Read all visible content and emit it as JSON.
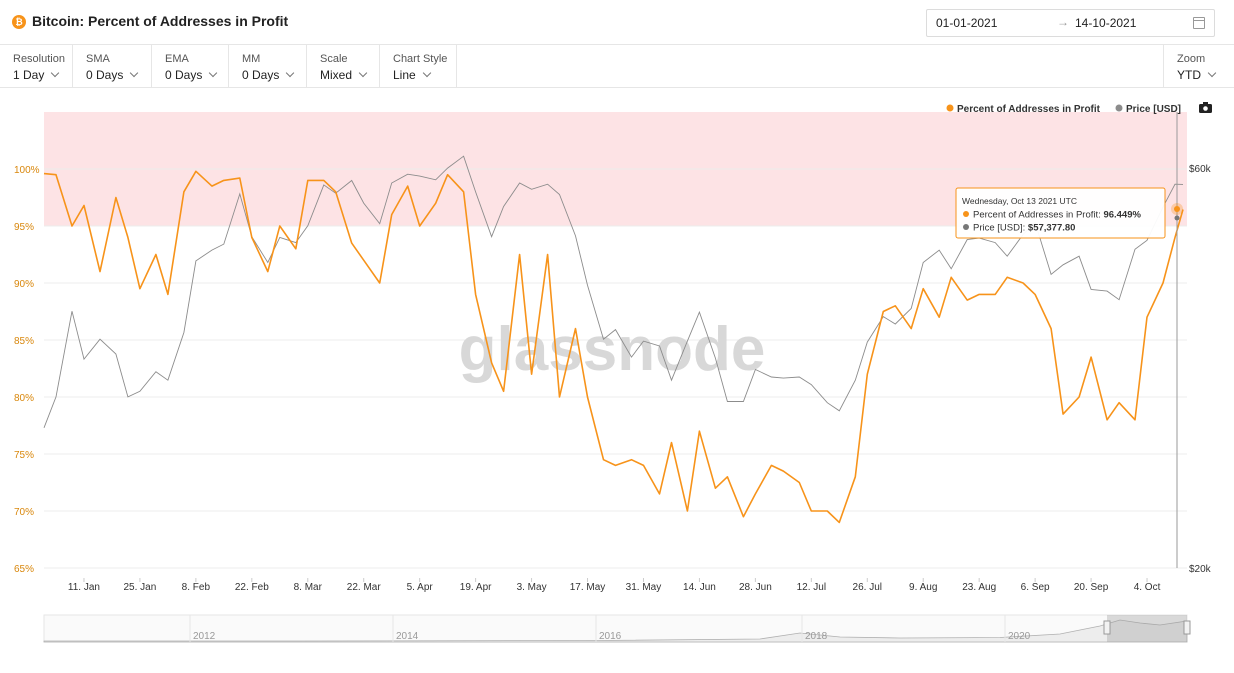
{
  "header": {
    "title": "Bitcoin: Percent of Addresses in Profit",
    "coin_icon_symbol": "₿",
    "coin_icon": "bitcoin-icon",
    "date_from": "01-01-2021",
    "date_to": "14-10-2021",
    "date_separator": "→",
    "calendar_icon": "calendar-icon"
  },
  "controls": [
    {
      "label": "Resolution",
      "value": "1 Day"
    },
    {
      "label": "SMA",
      "value": "0 Days"
    },
    {
      "label": "EMA",
      "value": "0 Days"
    },
    {
      "label": "MM",
      "value": "0 Days"
    },
    {
      "label": "Scale",
      "value": "Mixed"
    },
    {
      "label": "Chart Style",
      "value": "Line"
    }
  ],
  "zoom": {
    "label": "Zoom",
    "value": "YTD"
  },
  "colors": {
    "profit": "#f7931a",
    "price": "#8c8c8c",
    "band": "#fde3e5",
    "band_line": "#f09ca3",
    "left_axis": "#d9870c"
  },
  "watermark": "glassnode",
  "tooltip": {
    "date": "Wednesday, Oct 13 2021 UTC",
    "profit_label": "Percent of Addresses in Profit:",
    "profit_value": "96.449%",
    "price_label": "Price [USD]:",
    "price_value": "$57,377.80"
  },
  "navigator": {
    "years": [
      "2012",
      "2014",
      "2016",
      "2018",
      "2020"
    ]
  },
  "chart_data": {
    "type": "line",
    "legend": [
      "Percent of Addresses in Profit",
      "Price [USD]"
    ],
    "legend_position": "top-right",
    "y_left": {
      "ticks": [
        "100%",
        "95%",
        "90%",
        "85%",
        "80%",
        "75%",
        "70%",
        "65%"
      ],
      "range": [
        65,
        105
      ]
    },
    "y_right": {
      "ticks": [
        "$60k",
        "$20k"
      ],
      "scale": "log",
      "range": [
        20000,
        70000
      ]
    },
    "x_ticks": [
      "11. Jan",
      "25. Jan",
      "8. Feb",
      "22. Feb",
      "8. Mar",
      "22. Mar",
      "5. Apr",
      "19. Apr",
      "3. May",
      "17. May",
      "31. May",
      "14. Jun",
      "28. Jun",
      "12. Jul",
      "26. Jul",
      "9. Aug",
      "23. Aug",
      "6. Sep",
      "20. Sep",
      "4. Oct"
    ],
    "highlight_band": [
      95,
      105
    ],
    "series": [
      {
        "name": "Percent of Addresses in Profit",
        "x": [
          "2021-01-01",
          "2021-01-04",
          "2021-01-08",
          "2021-01-11",
          "2021-01-15",
          "2021-01-19",
          "2021-01-22",
          "2021-01-25",
          "2021-01-29",
          "2021-02-01",
          "2021-02-05",
          "2021-02-08",
          "2021-02-12",
          "2021-02-15",
          "2021-02-19",
          "2021-02-22",
          "2021-02-26",
          "2021-03-01",
          "2021-03-05",
          "2021-03-08",
          "2021-03-12",
          "2021-03-15",
          "2021-03-19",
          "2021-03-22",
          "2021-03-26",
          "2021-03-29",
          "2021-04-02",
          "2021-04-05",
          "2021-04-09",
          "2021-04-12",
          "2021-04-16",
          "2021-04-19",
          "2021-04-23",
          "2021-04-26",
          "2021-04-30",
          "2021-05-03",
          "2021-05-07",
          "2021-05-10",
          "2021-05-14",
          "2021-05-17",
          "2021-05-21",
          "2021-05-24",
          "2021-05-28",
          "2021-05-31",
          "2021-06-04",
          "2021-06-07",
          "2021-06-11",
          "2021-06-14",
          "2021-06-18",
          "2021-06-21",
          "2021-06-25",
          "2021-06-28",
          "2021-07-02",
          "2021-07-05",
          "2021-07-09",
          "2021-07-12",
          "2021-07-16",
          "2021-07-19",
          "2021-07-23",
          "2021-07-26",
          "2021-07-30",
          "2021-08-02",
          "2021-08-06",
          "2021-08-09",
          "2021-08-13",
          "2021-08-16",
          "2021-08-20",
          "2021-08-23",
          "2021-08-27",
          "2021-08-30",
          "2021-09-03",
          "2021-09-06",
          "2021-09-10",
          "2021-09-13",
          "2021-09-17",
          "2021-09-20",
          "2021-09-24",
          "2021-09-27",
          "2021-10-01",
          "2021-10-04",
          "2021-10-08",
          "2021-10-11",
          "2021-10-13"
        ],
        "y": [
          99.6,
          99.5,
          95.0,
          96.8,
          91.0,
          97.5,
          94.0,
          89.5,
          92.5,
          89.0,
          98.0,
          99.8,
          98.5,
          99.0,
          99.2,
          94.0,
          91.0,
          95.0,
          93.0,
          99.0,
          99.0,
          98.0,
          93.5,
          92.0,
          90.0,
          96.0,
          98.5,
          95.0,
          97.0,
          99.5,
          98.0,
          89.0,
          83.0,
          80.5,
          92.5,
          82.0,
          92.5,
          80.0,
          86.0,
          80.0,
          74.5,
          74.0,
          74.5,
          74.0,
          71.5,
          76.0,
          70.0,
          77.0,
          72.0,
          73.0,
          69.5,
          71.5,
          74.0,
          73.5,
          72.5,
          70.0,
          70.0,
          69.0,
          73.0,
          82.0,
          87.5,
          88.0,
          86.0,
          89.5,
          87.0,
          90.5,
          88.5,
          89.0,
          89.0,
          90.5,
          90.0,
          89.0,
          86.0,
          78.5,
          80.0,
          83.5,
          78.0,
          79.5,
          78.0,
          87.0,
          90.0,
          94.0,
          96.449
        ]
      },
      {
        "name": "Price [USD]",
        "x": [
          "2021-01-01",
          "2021-01-04",
          "2021-01-08",
          "2021-01-11",
          "2021-01-15",
          "2021-01-19",
          "2021-01-22",
          "2021-01-25",
          "2021-01-29",
          "2021-02-01",
          "2021-02-05",
          "2021-02-08",
          "2021-02-12",
          "2021-02-15",
          "2021-02-19",
          "2021-02-22",
          "2021-02-26",
          "2021-03-01",
          "2021-03-05",
          "2021-03-08",
          "2021-03-12",
          "2021-03-15",
          "2021-03-19",
          "2021-03-22",
          "2021-03-26",
          "2021-03-29",
          "2021-04-02",
          "2021-04-05",
          "2021-04-09",
          "2021-04-12",
          "2021-04-16",
          "2021-04-19",
          "2021-04-23",
          "2021-04-26",
          "2021-04-30",
          "2021-05-03",
          "2021-05-07",
          "2021-05-10",
          "2021-05-14",
          "2021-05-17",
          "2021-05-21",
          "2021-05-24",
          "2021-05-28",
          "2021-05-31",
          "2021-06-04",
          "2021-06-07",
          "2021-06-11",
          "2021-06-14",
          "2021-06-18",
          "2021-06-21",
          "2021-06-25",
          "2021-06-28",
          "2021-07-02",
          "2021-07-05",
          "2021-07-09",
          "2021-07-12",
          "2021-07-16",
          "2021-07-19",
          "2021-07-23",
          "2021-07-26",
          "2021-07-30",
          "2021-08-02",
          "2021-08-06",
          "2021-08-09",
          "2021-08-13",
          "2021-08-16",
          "2021-08-20",
          "2021-08-23",
          "2021-08-27",
          "2021-08-30",
          "2021-09-03",
          "2021-09-06",
          "2021-09-10",
          "2021-09-13",
          "2021-09-17",
          "2021-09-20",
          "2021-09-24",
          "2021-09-27",
          "2021-10-01",
          "2021-10-04",
          "2021-10-08",
          "2021-10-11",
          "2021-10-13"
        ],
        "y": [
          29400,
          32000,
          40500,
          35500,
          37500,
          36000,
          32000,
          32500,
          34300,
          33500,
          38200,
          46500,
          47900,
          48700,
          55900,
          49700,
          46300,
          49600,
          48900,
          51200,
          57300,
          56000,
          58000,
          54500,
          51500,
          57600,
          59000,
          58700,
          58100,
          60000,
          62000,
          56200,
          49700,
          54000,
          57600,
          56600,
          57400,
          55800,
          49800,
          43500,
          37500,
          38500,
          35700,
          37300,
          36800,
          33500,
          37300,
          40400,
          35600,
          31600,
          31600,
          34500,
          33800,
          33700,
          33800,
          33100,
          31500,
          30800,
          33500,
          37200,
          39900,
          39100,
          40800,
          46300,
          47900,
          45500,
          49300,
          49500,
          48900,
          47100,
          50000,
          51700,
          44800,
          46000,
          47100,
          43000,
          42800,
          41800,
          48000,
          49200,
          53900,
          57400,
          57377.8
        ]
      }
    ]
  }
}
